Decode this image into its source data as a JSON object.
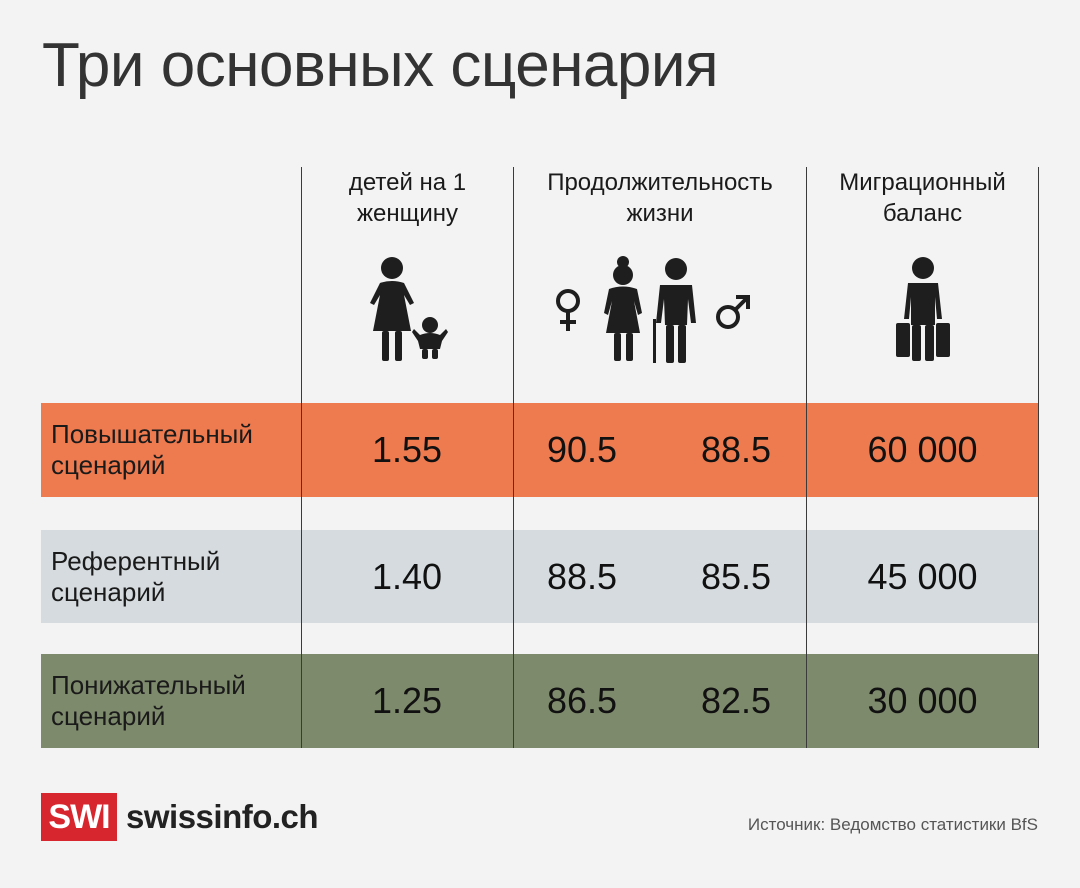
{
  "title": "Три основных сценария",
  "colors": {
    "row_high": "#ee7a50",
    "row_ref": "#d5dbde",
    "row_low": "#7e8a6c",
    "logo_red": "#d8262e"
  },
  "columns": {
    "children": {
      "line1": "детей на 1",
      "line2": "женщину",
      "icon": "mother-child-icon"
    },
    "life": {
      "line1": "Продолжительность",
      "line2": "жизни",
      "icon": "elderly-couple-icon",
      "female_icon": "female-symbol-icon",
      "male_icon": "male-symbol-icon"
    },
    "migration": {
      "line1": "Миграционный",
      "line2": "баланс",
      "icon": "traveler-suitcases-icon"
    }
  },
  "chart_data": {
    "type": "table",
    "title": "Три основных сценария",
    "columns": [
      "детей на 1 женщину",
      "Продолжительность жизни (♀)",
      "Продолжительность жизни (♂)",
      "Миграционный баланс"
    ],
    "rows": [
      {
        "label_line1": "Повышательный",
        "label_line2": "сценарий",
        "children": "1.55",
        "life_female": "90.5",
        "life_male": "88.5",
        "migration": "60 000"
      },
      {
        "label_line1": "Референтный",
        "label_line2": "сценарий",
        "children": "1.40",
        "life_female": "88.5",
        "life_male": "85.5",
        "migration": "45 000"
      },
      {
        "label_line1": "Понижательный",
        "label_line2": "сценарий",
        "children": "1.25",
        "life_female": "86.5",
        "life_male": "82.5",
        "migration": "30 000"
      }
    ]
  },
  "footer": {
    "logo_box": "SWI",
    "logo_text": "swissinfo.ch",
    "source": "Источник: Ведомство статистики BfS"
  }
}
